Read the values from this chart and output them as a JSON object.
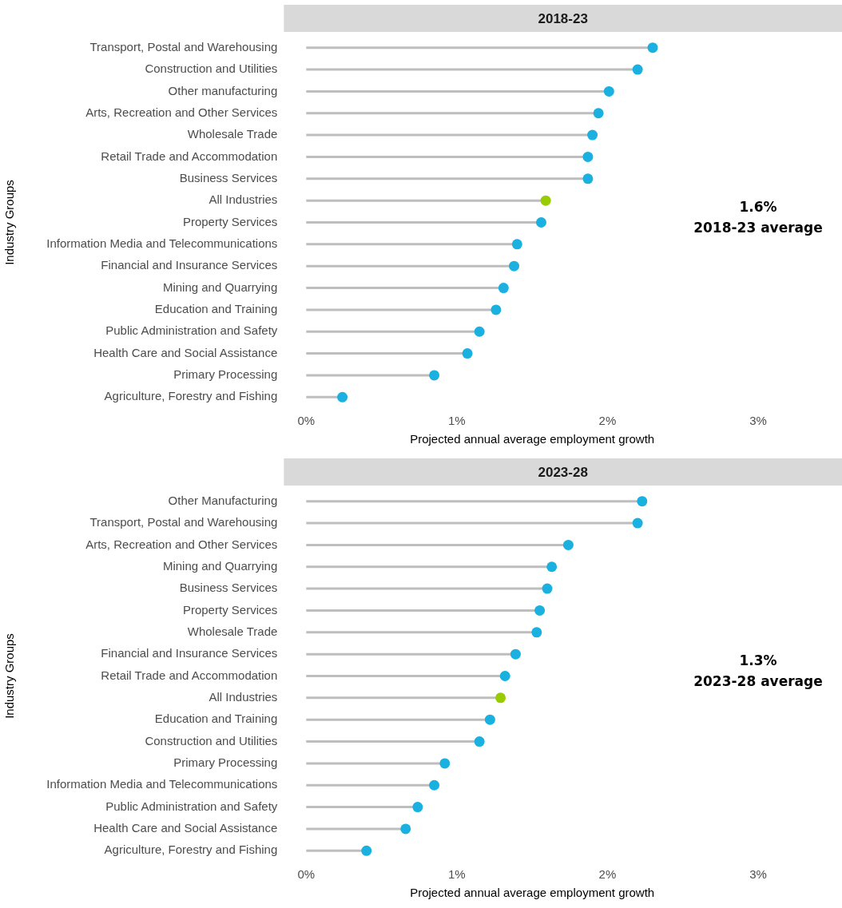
{
  "chart_data": [
    {
      "type": "lollipop",
      "title": "2018-23",
      "xlabel": "Projected annual average employment growth",
      "ylabel": "Industry Groups",
      "annotations": [
        "1.6%",
        "2018-23 average"
      ],
      "categories": [
        "Transport, Postal and Warehousing",
        "Construction and Utilities",
        "Other manufacturing",
        "Arts, Recreation and Other Services",
        "Wholesale Trade",
        "Retail Trade and Accommodation",
        "Business Services",
        "All Industries",
        "Property Services",
        "Information Media and Telecommunications",
        "Financial and Insurance Services",
        "Mining and Quarrying",
        "Education and Training",
        "Public Administration and Safety",
        "Health Care and Social Assistance",
        "Primary Processing",
        "Agriculture, Forestry and Fishing"
      ],
      "values": [
        2.3,
        2.2,
        2.01,
        1.94,
        1.9,
        1.87,
        1.87,
        1.59,
        1.56,
        1.4,
        1.38,
        1.31,
        1.26,
        1.15,
        1.07,
        0.85,
        0.24
      ],
      "colors": [
        "#1ab0e0",
        "#1ab0e0",
        "#1ab0e0",
        "#1ab0e0",
        "#1ab0e0",
        "#1ab0e0",
        "#1ab0e0",
        "#99cc00",
        "#1ab0e0",
        "#1ab0e0",
        "#1ab0e0",
        "#1ab0e0",
        "#1ab0e0",
        "#1ab0e0",
        "#1ab0e0",
        "#1ab0e0",
        "#1ab0e0"
      ],
      "orientation": "horizontal",
      "xlim": [
        0,
        3
      ],
      "xticks": [
        {
          "value": 0,
          "label": "0%"
        },
        {
          "value": 1,
          "label": "1%"
        },
        {
          "value": 2,
          "label": "2%"
        },
        {
          "value": 3,
          "label": "3%"
        }
      ],
      "grid": false,
      "legend": false,
      "marker": "circle"
    },
    {
      "type": "lollipop",
      "title": "2023-28",
      "xlabel": "Projected annual average employment growth",
      "ylabel": "Industry Groups",
      "annotations": [
        "1.3%",
        "2023-28 average"
      ],
      "categories": [
        "Other Manufacturing",
        "Transport, Postal and Warehousing",
        "Arts, Recreation and Other Services",
        "Mining and Quarrying",
        "Business Services",
        "Property Services",
        "Wholesale Trade",
        "Financial and Insurance Services",
        "Retail Trade and Accommodation",
        "All Industries",
        "Education and Training",
        "Construction and Utilities",
        "Primary Processing",
        "Information Media and Telecommunications",
        "Public Administration and Safety",
        "Health Care and Social Assistance",
        "Agriculture, Forestry and Fishing"
      ],
      "values": [
        2.23,
        2.2,
        1.74,
        1.63,
        1.6,
        1.55,
        1.53,
        1.39,
        1.32,
        1.29,
        1.22,
        1.15,
        0.92,
        0.85,
        0.74,
        0.66,
        0.4
      ],
      "colors": [
        "#1ab0e0",
        "#1ab0e0",
        "#1ab0e0",
        "#1ab0e0",
        "#1ab0e0",
        "#1ab0e0",
        "#1ab0e0",
        "#1ab0e0",
        "#1ab0e0",
        "#99cc00",
        "#1ab0e0",
        "#1ab0e0",
        "#1ab0e0",
        "#1ab0e0",
        "#1ab0e0",
        "#1ab0e0",
        "#1ab0e0"
      ],
      "orientation": "horizontal",
      "xlim": [
        0,
        3
      ],
      "xticks": [
        {
          "value": 0,
          "label": "0%"
        },
        {
          "value": 1,
          "label": "1%"
        },
        {
          "value": 2,
          "label": "2%"
        },
        {
          "value": 3,
          "label": "3%"
        }
      ],
      "grid": false,
      "legend": false,
      "marker": "circle"
    }
  ]
}
